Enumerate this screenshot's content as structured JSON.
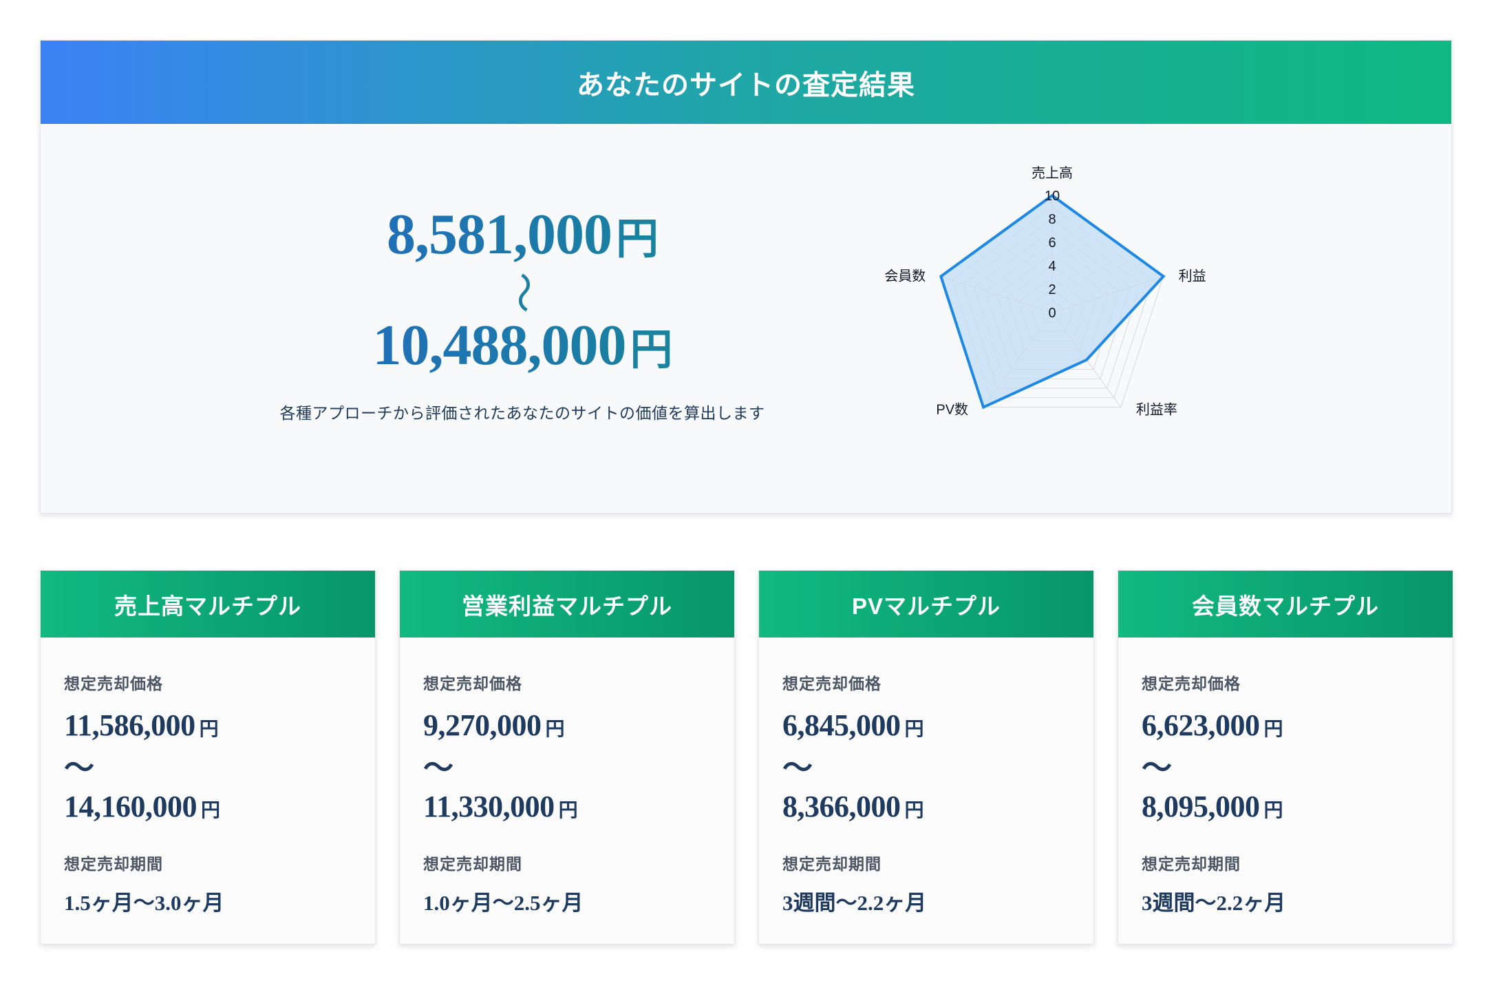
{
  "result": {
    "title": "あなたのサイトの査定結果",
    "price_low": "8,581,000",
    "price_high": "10,488,000",
    "currency": "円",
    "range_symbol": "〜",
    "description": "各種アプローチから評価されたあなたのサイトの価値を算出します"
  },
  "chart_data": {
    "type": "radar",
    "axes": [
      "売上高",
      "利益",
      "利益率",
      "PV数",
      "会員数"
    ],
    "values": [
      10,
      10,
      5,
      10,
      10
    ],
    "ticks": [
      "0",
      "2",
      "4",
      "6",
      "8",
      "10"
    ],
    "range": [
      0,
      10
    ],
    "grid": true,
    "colors": {
      "line": "#1e88e5",
      "fill": "#bfdcf5",
      "grid": "#d9d9d9"
    }
  },
  "cards": [
    {
      "title": "売上高マルチプル",
      "price_label": "想定売却価格",
      "price_low": "11,586,000",
      "price_high": "14,160,000",
      "currency": "円",
      "tilde": "〜",
      "period_label": "想定売却期間",
      "period": "1.5ヶ月〜3.0ヶ月"
    },
    {
      "title": "営業利益マルチプル",
      "price_label": "想定売却価格",
      "price_low": "9,270,000",
      "price_high": "11,330,000",
      "currency": "円",
      "tilde": "〜",
      "period_label": "想定売却期間",
      "period": "1.0ヶ月〜2.5ヶ月"
    },
    {
      "title": "PVマルチプル",
      "price_label": "想定売却価格",
      "price_low": "6,845,000",
      "price_high": "8,366,000",
      "currency": "円",
      "tilde": "〜",
      "period_label": "想定売却期間",
      "period": "3週間〜2.2ヶ月"
    },
    {
      "title": "会員数マルチプル",
      "price_label": "想定売却価格",
      "price_low": "6,623,000",
      "price_high": "8,095,000",
      "currency": "円",
      "tilde": "〜",
      "period_label": "想定売却期間",
      "period": "3週間〜2.2ヶ月"
    }
  ]
}
